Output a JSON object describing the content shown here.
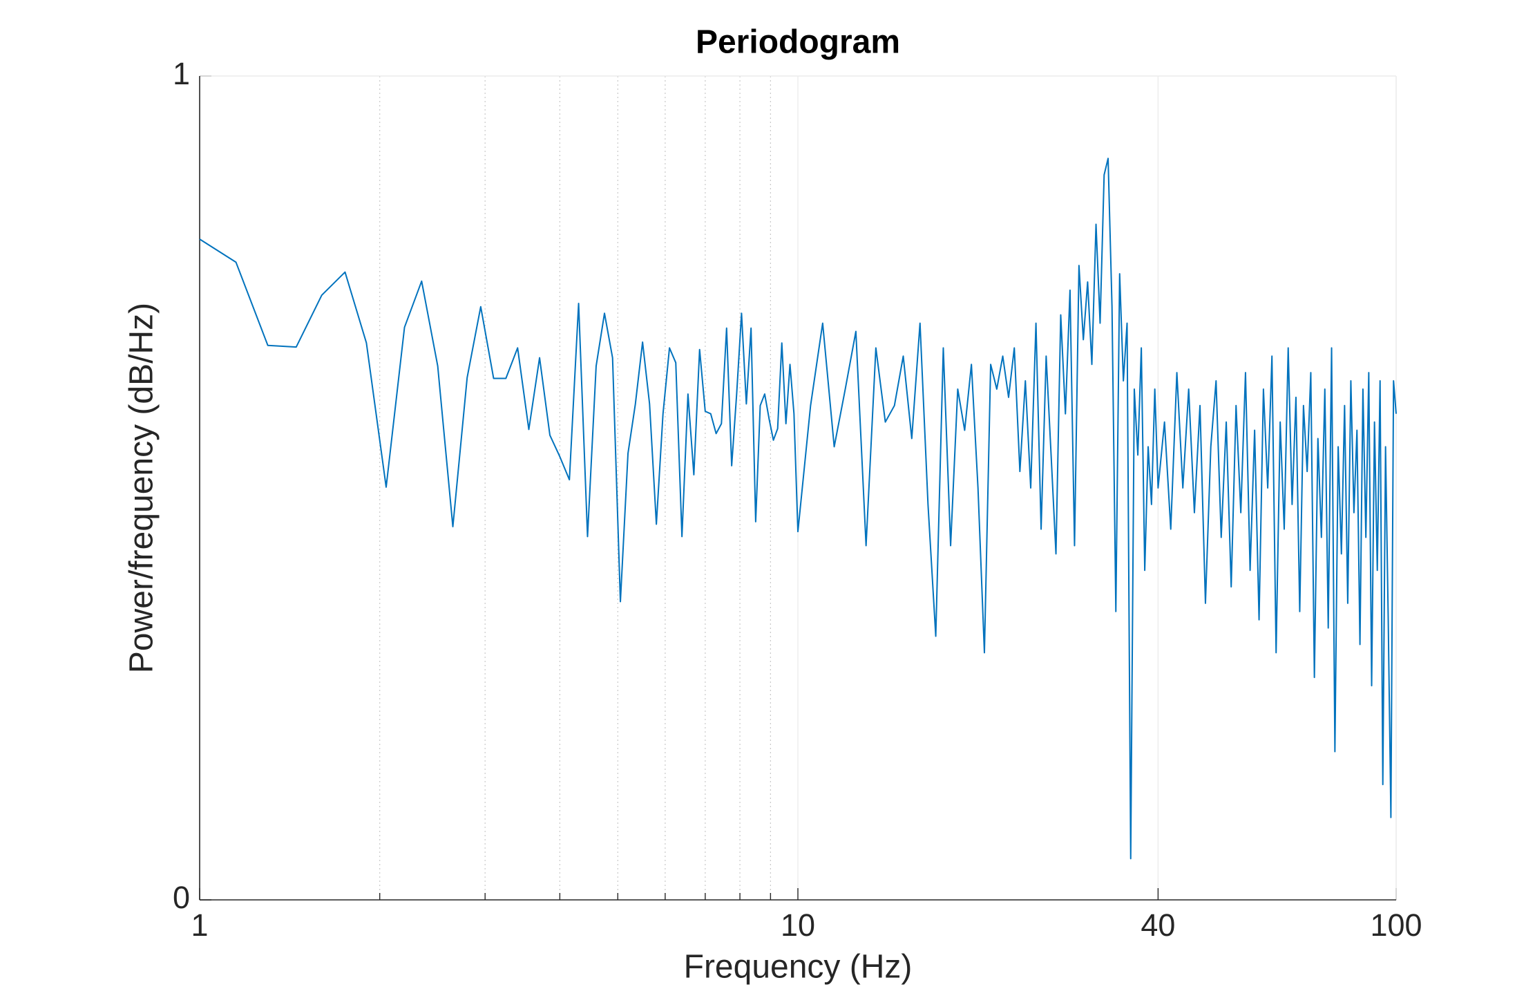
{
  "chart_data": {
    "type": "line",
    "title": "Periodogram",
    "xlabel": "Frequency (Hz)",
    "ylabel": "Power/frequency (dB/Hz)",
    "xscale": "log",
    "xlim": [
      1,
      100
    ],
    "xticks": [
      1,
      10,
      40,
      100
    ],
    "ylim": [
      0,
      1
    ],
    "yticks": [
      0,
      1
    ],
    "grid": true,
    "minor_grid": true,
    "color": "#0072bd",
    "x": [
      1,
      1.15,
      1.3,
      1.45,
      1.6,
      1.75,
      1.9,
      2.05,
      2.2,
      2.35,
      2.5,
      2.65,
      2.8,
      2.95,
      3.1,
      3.25,
      3.4,
      3.55,
      3.7,
      3.85,
      4,
      4.15,
      4.3,
      4.45,
      4.6,
      4.75,
      4.9,
      5.05,
      5.2,
      5.35,
      5.5,
      5.65,
      5.8,
      5.95,
      6.1,
      6.25,
      6.4,
      6.55,
      6.7,
      6.85,
      7,
      7.15,
      7.3,
      7.45,
      7.6,
      7.75,
      7.9,
      8.05,
      8.2,
      8.35,
      8.5,
      8.65,
      8.8,
      8.95,
      9.1,
      9.25,
      9.4,
      9.55,
      9.7,
      9.85,
      10,
      10.5,
      11,
      11.5,
      12,
      12.5,
      13,
      13.5,
      14,
      14.5,
      15,
      15.5,
      16,
      16.5,
      17,
      17.5,
      18,
      18.5,
      19,
      19.5,
      20,
      20.5,
      21,
      21.5,
      22,
      22.5,
      23,
      23.5,
      24,
      24.5,
      25,
      25.5,
      26,
      26.5,
      27,
      27.5,
      28,
      28.5,
      29,
      29.5,
      30,
      30.5,
      31,
      31.5,
      32,
      32.5,
      33,
      33.5,
      34,
      34.5,
      35,
      35.5,
      36,
      36.5,
      37,
      37.5,
      38,
      38.5,
      39,
      39.5,
      40,
      41,
      42,
      43,
      44,
      45,
      46,
      47,
      48,
      49,
      50,
      51,
      52,
      53,
      54,
      55,
      56,
      57,
      58,
      59,
      60,
      61,
      62,
      63,
      64,
      65,
      66,
      67,
      68,
      69,
      70,
      71,
      72,
      73,
      74,
      75,
      76,
      77,
      78,
      79,
      80,
      81,
      82,
      83,
      84,
      85,
      86,
      87,
      88,
      89,
      90,
      91,
      92,
      93,
      94,
      95,
      96,
      97,
      98,
      99,
      100
    ],
    "values": [
      0.802,
      0.774,
      0.673,
      0.671,
      0.734,
      0.762,
      0.676,
      0.501,
      0.695,
      0.751,
      0.648,
      0.453,
      0.634,
      0.72,
      0.633,
      0.633,
      0.67,
      0.571,
      0.658,
      0.564,
      0.538,
      0.51,
      0.724,
      0.441,
      0.648,
      0.712,
      0.658,
      0.362,
      0.542,
      0.602,
      0.677,
      0.602,
      0.456,
      0.59,
      0.67,
      0.652,
      0.441,
      0.614,
      0.516,
      0.668,
      0.593,
      0.59,
      0.566,
      0.578,
      0.694,
      0.527,
      0.614,
      0.712,
      0.602,
      0.694,
      0.459,
      0.6,
      0.614,
      0.584,
      0.558,
      0.572,
      0.676,
      0.578,
      0.65,
      0.59,
      0.447,
      0.6,
      0.7,
      0.55,
      0.62,
      0.69,
      0.43,
      0.67,
      0.58,
      0.6,
      0.66,
      0.56,
      0.7,
      0.48,
      0.32,
      0.67,
      0.43,
      0.62,
      0.57,
      0.65,
      0.5,
      0.3,
      0.65,
      0.62,
      0.66,
      0.61,
      0.67,
      0.52,
      0.63,
      0.5,
      0.7,
      0.45,
      0.66,
      0.54,
      0.42,
      0.71,
      0.59,
      0.74,
      0.43,
      0.77,
      0.68,
      0.75,
      0.65,
      0.82,
      0.7,
      0.88,
      0.9,
      0.72,
      0.35,
      0.76,
      0.63,
      0.7,
      0.05,
      0.62,
      0.54,
      0.67,
      0.4,
      0.55,
      0.48,
      0.62,
      0.5,
      0.58,
      0.45,
      0.64,
      0.5,
      0.62,
      0.47,
      0.6,
      0.36,
      0.55,
      0.63,
      0.44,
      0.58,
      0.38,
      0.6,
      0.47,
      0.64,
      0.4,
      0.57,
      0.34,
      0.62,
      0.5,
      0.66,
      0.3,
      0.58,
      0.45,
      0.67,
      0.48,
      0.61,
      0.35,
      0.6,
      0.52,
      0.64,
      0.27,
      0.56,
      0.44,
      0.62,
      0.33,
      0.67,
      0.18,
      0.55,
      0.42,
      0.6,
      0.36,
      0.63,
      0.47,
      0.57,
      0.31,
      0.62,
      0.44,
      0.64,
      0.26,
      0.58,
      0.4,
      0.63,
      0.14,
      0.55,
      0.34,
      0.1,
      0.63,
      0.59
    ]
  }
}
